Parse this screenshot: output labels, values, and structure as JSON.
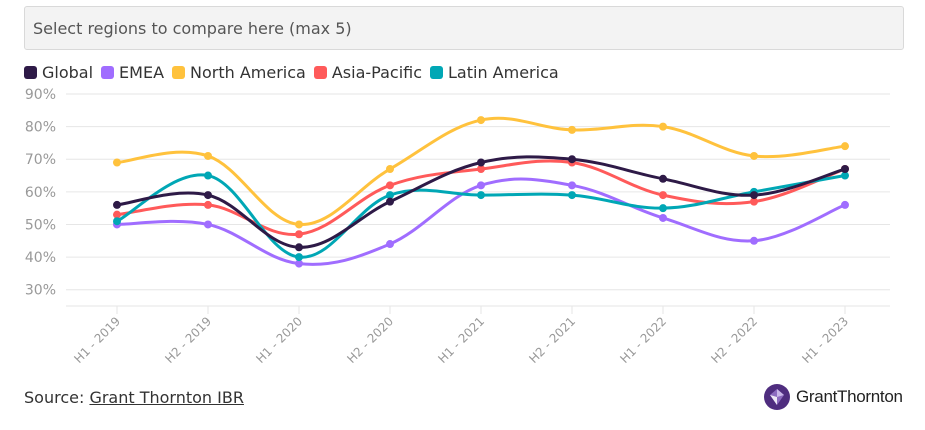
{
  "selector": {
    "placeholder": "Select regions to compare here (max 5)"
  },
  "source": {
    "prefix": "Source: ",
    "link_text": "Grant Thornton IBR"
  },
  "brand": {
    "name": "GrantThornton",
    "icon": "grant-thornton-logo-icon",
    "color": "#4f2d7f"
  },
  "chart_data": {
    "type": "line",
    "categories": [
      "H1 - 2019",
      "H2 - 2019",
      "H1 - 2020",
      "H2 - 2020",
      "H1 - 2021",
      "H2 - 2021",
      "H1 - 2022",
      "H2 - 2022",
      "H1 - 2023"
    ],
    "ylim": [
      25,
      90
    ],
    "yticks": [
      30,
      40,
      50,
      60,
      70,
      80,
      90
    ],
    "ytick_labels": [
      "30%",
      "40%",
      "50%",
      "60%",
      "70%",
      "80%",
      "90%"
    ],
    "grid": true,
    "legend_position": "top-left",
    "series": [
      {
        "name": "Global",
        "color": "#2e1a47",
        "values": [
          56,
          59,
          43,
          57,
          69,
          70,
          64,
          59,
          67
        ]
      },
      {
        "name": "EMEA",
        "color": "#a06dff",
        "values": [
          50,
          50,
          38,
          44,
          62,
          62,
          52,
          45,
          56
        ]
      },
      {
        "name": "North America",
        "color": "#ffc23d",
        "values": [
          69,
          71,
          50,
          67,
          82,
          79,
          80,
          71,
          74
        ]
      },
      {
        "name": "Asia-Pacific",
        "color": "#ff5a5a",
        "values": [
          53,
          56,
          47,
          62,
          67,
          69,
          59,
          57,
          67
        ]
      },
      {
        "name": "Latin America",
        "color": "#00a7b5",
        "values": [
          51,
          65,
          40,
          59,
          59,
          59,
          55,
          60,
          65
        ]
      }
    ]
  }
}
